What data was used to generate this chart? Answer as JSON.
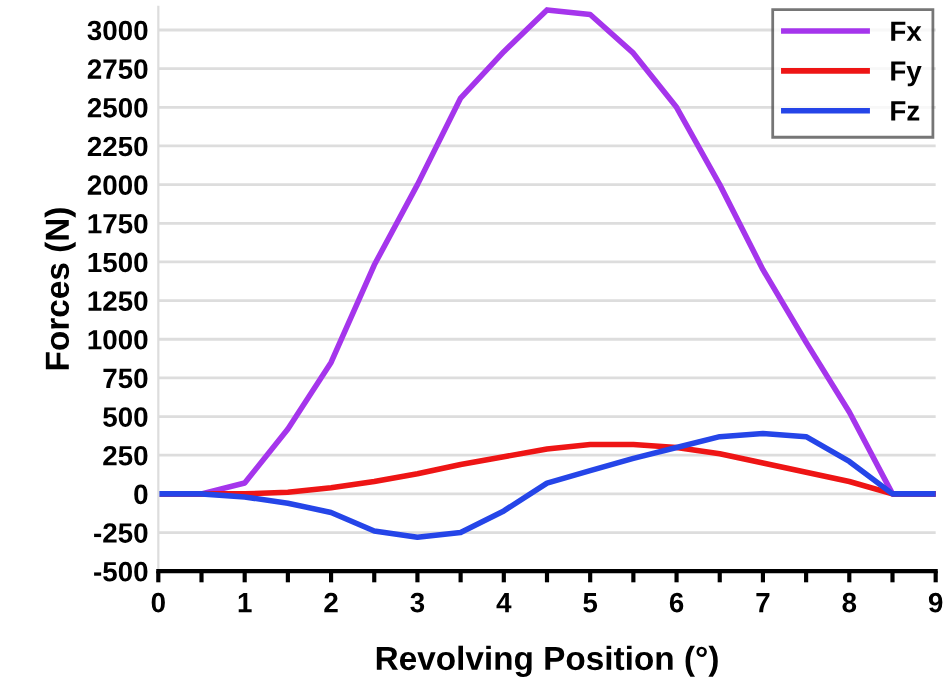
{
  "chart_data": {
    "type": "line",
    "xlabel": "Revolving Position (°)",
    "ylabel": "Forces (N)",
    "x": [
      0,
      0.5,
      1,
      1.5,
      2,
      2.5,
      3,
      3.5,
      4,
      4.5,
      5,
      5.5,
      6,
      6.5,
      7,
      7.5,
      8,
      8.5,
      9
    ],
    "series": [
      {
        "name": "Fx",
        "color": "#a535ec",
        "values": [
          0,
          0,
          70,
          420,
          850,
          1480,
          2000,
          2560,
          2860,
          3130,
          3100,
          2850,
          2500,
          2000,
          1450,
          980,
          530,
          0,
          0
        ]
      },
      {
        "name": "Fy",
        "color": "#ee1515",
        "values": [
          0,
          0,
          0,
          10,
          40,
          80,
          130,
          190,
          240,
          290,
          320,
          320,
          300,
          260,
          200,
          140,
          80,
          0,
          0
        ]
      },
      {
        "name": "Fz",
        "color": "#2545e8",
        "values": [
          0,
          0,
          -20,
          -60,
          -120,
          -240,
          -280,
          -250,
          -110,
          70,
          150,
          230,
          300,
          370,
          390,
          370,
          210,
          0,
          0
        ]
      }
    ],
    "xlim": [
      0,
      9
    ],
    "xticks": [
      0,
      {
        "value": 0.5,
        "label": null
      },
      1,
      {
        "value": 1.5,
        "label": null
      },
      2,
      {
        "value": 2.5,
        "label": null
      },
      3,
      {
        "value": 3.5,
        "label": null
      },
      4,
      {
        "value": 4.5,
        "label": null
      },
      5,
      {
        "value": 5.5,
        "label": null
      },
      6,
      {
        "value": 6.5,
        "label": null
      },
      7,
      {
        "value": 7.5,
        "label": null
      },
      8,
      {
        "value": 8.5,
        "label": null
      },
      9
    ],
    "ylim": [
      -500,
      3150
    ],
    "yticks": [
      -500,
      -250,
      0,
      250,
      500,
      750,
      1000,
      1250,
      1500,
      1750,
      2000,
      2250,
      2500,
      2750,
      3000
    ],
    "grid": "y",
    "legend": "top right",
    "marker": "none",
    "line_style": "solid"
  }
}
